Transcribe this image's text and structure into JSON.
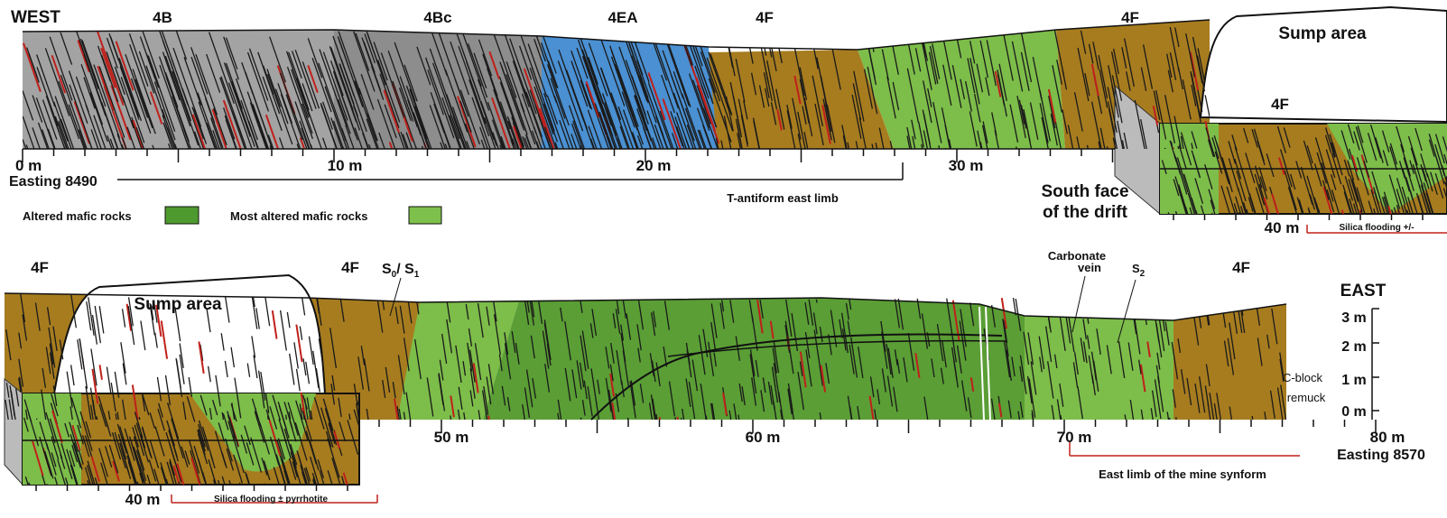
{
  "top_panel": {
    "west": "WEST",
    "zones": [
      "4B",
      "4Bc",
      "4EA",
      "4F",
      "4F"
    ],
    "sump": "Sump area",
    "inset_zone": "4F",
    "scale": [
      "0 m",
      "10 m",
      "20 m",
      "30 m"
    ],
    "easting": "Easting 8490",
    "limb": "T-antiform east limb",
    "south_face": [
      "South face",
      "of the drift"
    ],
    "inset_scale": "40 m",
    "silica": "Silica flooding +/-"
  },
  "legend": [
    "Altered mafic rocks",
    "Most altered mafic rocks"
  ],
  "bottom_panel": {
    "zones": [
      "4F",
      "4F",
      "4F"
    ],
    "sump": "Sump area",
    "foliation": {
      "s": "S",
      "sub0": "0",
      "slash": "/ S",
      "sub1": "1"
    },
    "s2": {
      "s": "S",
      "sub": "2"
    },
    "vein": [
      "Carbonate",
      "vein"
    ],
    "east": "EAST",
    "vscale": [
      "3 m",
      "2 m",
      "1 m",
      "0 m"
    ],
    "remuck": [
      "C-block",
      "remuck"
    ],
    "scale": [
      "50 m",
      "60 m",
      "70 m",
      "80 m"
    ],
    "easting": "Easting 8570",
    "limb": "East limb of the mine synform",
    "inset_scale": "40 m",
    "silica": "Silica flooding ± pyrrhotite"
  }
}
